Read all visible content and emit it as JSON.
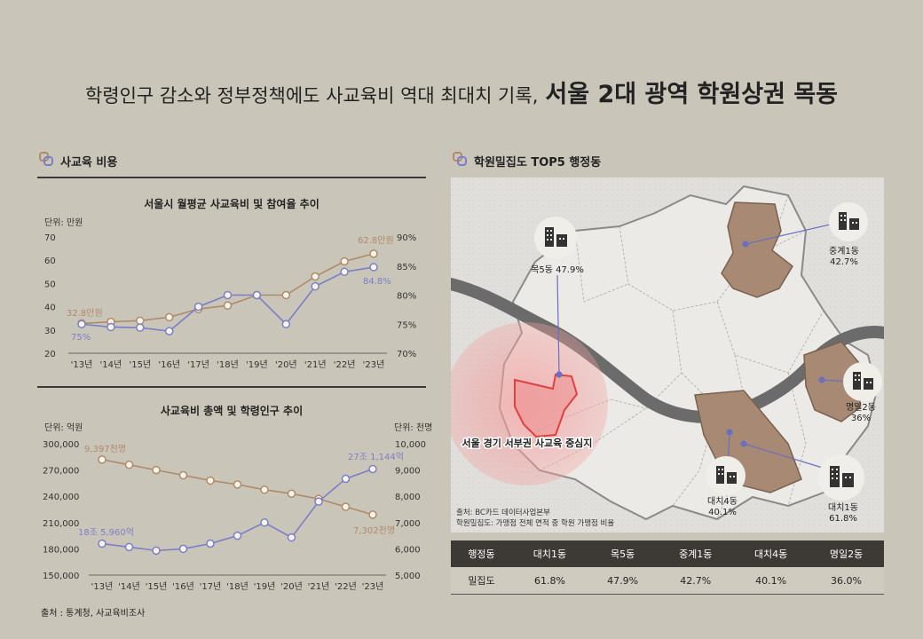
{
  "headline": {
    "normal": "학령인구 감소와 정부정책에도 사교육비 역대 최대치 기록,",
    "bold": "서울 2대 광역 학원상권 목동"
  },
  "left_section": {
    "title": "사교육 비용"
  },
  "right_section": {
    "title": "학원밀집도 TOP5 행정동"
  },
  "colors": {
    "brown": "#b08a6a",
    "blue": "#7b7fc9",
    "dark": "#3d3935",
    "district_fill": "#a88a74",
    "highlight_red": "#e04040"
  },
  "chart_data": [
    {
      "type": "line",
      "title": "서울시 월평균 사교육비 및 참여율 추이",
      "unit_left": "단위: 만원",
      "categories": [
        "'13년",
        "'14년",
        "'15년",
        "'16년",
        "'17년",
        "'18년",
        "'19년",
        "'20년",
        "'21년",
        "'22년",
        "'23년"
      ],
      "yticks_left": [
        "70",
        "60",
        "50",
        "40",
        "30",
        "20"
      ],
      "yticks_right": [
        "90%",
        "85%",
        "80%",
        "75%",
        "70%"
      ],
      "ylim_left": [
        20,
        70
      ],
      "ylim_right": [
        70,
        90
      ],
      "series": [
        {
          "axis": "left",
          "color": "#b08a6a",
          "values": [
            32.8,
            33.5,
            34,
            35.5,
            39,
            40.5,
            45,
            45,
            53,
            59.5,
            62.8
          ]
        },
        {
          "axis": "right",
          "color": "#7b7fc9",
          "values": [
            75,
            74.5,
            74.4,
            73.8,
            78,
            80,
            80,
            75,
            81.5,
            84,
            84.8
          ]
        }
      ],
      "labels": {
        "brown_start": "32.8만원",
        "brown_end": "62.8만원",
        "blue_start": "75%",
        "blue_end": "84.8%"
      }
    },
    {
      "type": "line",
      "title": "사교육비 총액 및 학령인구 추이",
      "unit_left": "단위: 억원",
      "unit_right": "단위: 천명",
      "categories": [
        "'13년",
        "'14년",
        "'15년",
        "'16년",
        "'17년",
        "'18년",
        "'19년",
        "'20년",
        "'21년",
        "'22년",
        "'23년"
      ],
      "yticks_left": [
        "300,000",
        "270,000",
        "240,000",
        "210,000",
        "180,000",
        "150,000"
      ],
      "yticks_right": [
        "10,000",
        "9,000",
        "8,000",
        "7,000",
        "6,000",
        "5,000"
      ],
      "ylim_left": [
        150000,
        300000
      ],
      "ylim_right": [
        5000,
        10000
      ],
      "series": [
        {
          "axis": "right",
          "color": "#b08a6a",
          "values": [
            9397,
            9200,
            9000,
            8800,
            8600,
            8450,
            8250,
            8100,
            7900,
            7600,
            7302
          ]
        },
        {
          "axis": "left",
          "color": "#7b7fc9",
          "values": [
            185960,
            182000,
            178000,
            180000,
            186000,
            195000,
            210000,
            193000,
            234000,
            260000,
            271144
          ]
        }
      ],
      "labels": {
        "brown_start": "9,397천명",
        "brown_end": "7,302천명",
        "blue_start": "18조 5,960억",
        "blue_end": "27조 1,144억"
      }
    }
  ],
  "source_left": "출처 : 통계청, 사교육비조사",
  "map": {
    "label_mokdong": "목5동 47.9%",
    "label_junggye_name": "중계1동",
    "label_junggye_value": "42.7%",
    "label_myeongil_name": "명일2동",
    "label_myeongil_value": "36%",
    "label_daechi4_name": "대치4동",
    "label_daechi4_value": "40.1%",
    "label_daechi1_name": "대치1동",
    "label_daechi1_value": "61.8%",
    "center_label": "서울 경기 서부권 사교육 중심지",
    "source_line1": "출처: BC카드 데이터사업본부",
    "source_line2": "학원밀집도: 가맹점 전체 면적 중 학원 가맹점 비율"
  },
  "table": {
    "header": [
      "행정동",
      "대치1동",
      "목5동",
      "중계1동",
      "대치4동",
      "명일2동"
    ],
    "row": [
      "밀집도",
      "61.8%",
      "47.9%",
      "42.7%",
      "40.1%",
      "36.0%"
    ]
  }
}
